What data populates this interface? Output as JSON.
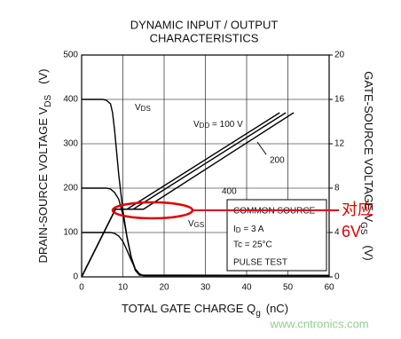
{
  "chart_data": {
    "type": "line",
    "title": [
      "DYNAMIC INPUT / OUTPUT",
      "CHARACTERISTICS"
    ],
    "x_label": {
      "text": "TOTAL GATE CHARGE  Q",
      "sub": "g",
      "unit": "(nC)"
    },
    "y_label": {
      "text": "DRAIN-SOURCE VOLTAGE  V",
      "sub": "DS",
      "unit": "(V)"
    },
    "y2_label": {
      "text": "GATE-SOURCE VOLTAGE  V",
      "sub": "GS",
      "unit": "(V)"
    },
    "xlim": [
      0,
      60
    ],
    "xticks": [
      0,
      10,
      20,
      30,
      40,
      50,
      60
    ],
    "ylim": [
      0,
      500
    ],
    "yticks": [
      0,
      100,
      200,
      300,
      400,
      500
    ],
    "y2lim": [
      0,
      20
    ],
    "y2ticks": [
      0,
      4,
      8,
      12,
      16,
      20
    ],
    "grid": true,
    "series": [
      {
        "color": "#000000",
        "axis": "y",
        "x": [
          0,
          5,
          6,
          7,
          7.5,
          8,
          8.5,
          9,
          10,
          11,
          12,
          13,
          14,
          15,
          60
        ],
        "values": [
          400,
          400,
          398,
          390,
          370,
          330,
          280,
          230,
          150,
          90,
          45,
          18,
          6,
          3,
          3
        ]
      },
      {
        "color": "#000000",
        "axis": "y",
        "x": [
          0,
          6,
          7,
          8,
          9,
          10,
          11,
          12,
          13,
          14,
          60
        ],
        "values": [
          200,
          200,
          198,
          190,
          175,
          140,
          90,
          45,
          15,
          4,
          3
        ]
      },
      {
        "color": "#000000",
        "axis": "y",
        "x": [
          0,
          7,
          8,
          9,
          10,
          11,
          12,
          13,
          14,
          15,
          60
        ],
        "values": [
          100,
          100,
          98,
          92,
          80,
          60,
          38,
          18,
          7,
          3,
          3
        ]
      },
      {
        "color": "#000000",
        "axis": "y2",
        "x": [
          0,
          8.2,
          11,
          48
        ],
        "values": [
          0,
          6.1,
          6.1,
          14.8
        ]
      },
      {
        "color": "#000000",
        "axis": "y2",
        "x": [
          0,
          8.2,
          12.5,
          49.5
        ],
        "values": [
          0,
          6.1,
          6.1,
          14.8
        ]
      },
      {
        "color": "#000000",
        "axis": "y2",
        "x": [
          0,
          8.2,
          15,
          51.4
        ],
        "values": [
          0,
          6.1,
          6.1,
          14.8
        ]
      }
    ],
    "annotations": {
      "vds": [
        "V",
        "DS"
      ],
      "vdd": [
        "V",
        "DD",
        " = 100 V"
      ],
      "v200": "200",
      "v400": "400",
      "vgs": [
        "V",
        "GS"
      ]
    },
    "box": {
      "line1": "COMMON SOURCE",
      "line2": [
        "I",
        "D",
        " = 3 A"
      ],
      "line3": "Tc = 25°C",
      "line4": "PULSE TEST"
    },
    "callout": [
      "对应",
      "6V"
    ],
    "watermark": "www.cntronics.com"
  }
}
